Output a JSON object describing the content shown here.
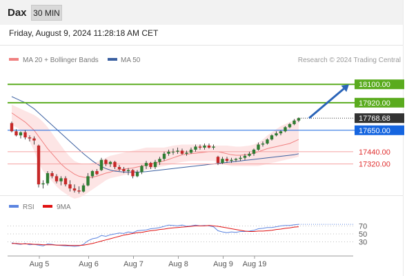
{
  "header": {
    "instrument": "Dax",
    "timeframe": "30 MIN"
  },
  "datetime": "Friday, August 9, 2024 11:28:18 AM CET",
  "legend": {
    "ma20_label": "MA 20 + Bollinger Bands",
    "ma50_label": "MA 50",
    "copyright": "Research © 2024 Trading Central"
  },
  "colors": {
    "up_candle": "#2e7d32",
    "down_candle": "#c62828",
    "wick": "#444444",
    "ma20": "#f08080",
    "bands_fill": "#fde0e0",
    "ma50": "#3a5fa0",
    "resistance": "#5aab1e",
    "current": "#333333",
    "pivot": "#1565e0",
    "support": "#f4a0a0",
    "arrow": "#2a64b8",
    "rsi": "#5b84e0",
    "rsi_ma": "#e01010"
  },
  "chart_data": [
    {
      "type": "candlestick",
      "instrument": "Dax",
      "interval": "30 MIN",
      "ylim": [
        17020,
        18250
      ],
      "x_ticks": [
        {
          "label": "Aug 5",
          "index": 4
        },
        {
          "label": "Aug 6",
          "index": 15
        },
        {
          "label": "Aug 7",
          "index": 25
        },
        {
          "label": "Aug 8",
          "index": 35
        },
        {
          "label": "Aug 9",
          "index": 45
        },
        {
          "label": "Aug 19",
          "index": 52
        }
      ],
      "candles": [
        [
          17720,
          17735,
          17630,
          17640
        ],
        [
          17640,
          17660,
          17590,
          17600
        ],
        [
          17600,
          17640,
          17570,
          17630
        ],
        [
          17630,
          17650,
          17560,
          17580
        ],
        [
          17580,
          17600,
          17540,
          17570
        ],
        [
          17570,
          17590,
          17510,
          17550
        ],
        [
          17500,
          17510,
          17090,
          17120
        ],
        [
          17120,
          17160,
          17080,
          17130
        ],
        [
          17130,
          17250,
          17110,
          17230
        ],
        [
          17230,
          17250,
          17180,
          17200
        ],
        [
          17200,
          17220,
          17130,
          17150
        ],
        [
          17150,
          17200,
          17110,
          17180
        ],
        [
          17180,
          17200,
          17100,
          17120
        ],
        [
          17120,
          17160,
          17050,
          17080
        ],
        [
          17080,
          17120,
          17040,
          17060
        ],
        [
          17060,
          17100,
          17030,
          17050
        ],
        [
          17050,
          17130,
          17040,
          17110
        ],
        [
          17110,
          17230,
          17100,
          17200
        ],
        [
          17200,
          17260,
          17180,
          17250
        ],
        [
          17250,
          17270,
          17210,
          17220
        ],
        [
          17260,
          17380,
          17250,
          17360
        ],
        [
          17360,
          17370,
          17300,
          17320
        ],
        [
          17320,
          17350,
          17290,
          17340
        ],
        [
          17340,
          17350,
          17270,
          17290
        ],
        [
          17290,
          17310,
          17250,
          17270
        ],
        [
          17270,
          17290,
          17230,
          17250
        ],
        [
          17250,
          17280,
          17210,
          17260
        ],
        [
          17260,
          17270,
          17180,
          17200
        ],
        [
          17200,
          17260,
          17190,
          17240
        ],
        [
          17240,
          17310,
          17220,
          17300
        ],
        [
          17300,
          17350,
          17270,
          17330
        ],
        [
          17330,
          17340,
          17270,
          17290
        ],
        [
          17290,
          17360,
          17270,
          17340
        ],
        [
          17340,
          17390,
          17310,
          17370
        ],
        [
          17370,
          17440,
          17350,
          17420
        ],
        [
          17420,
          17460,
          17400,
          17440
        ],
        [
          17440,
          17470,
          17410,
          17440
        ],
        [
          17440,
          17480,
          17420,
          17450
        ],
        [
          17450,
          17470,
          17410,
          17420
        ],
        [
          17420,
          17450,
          17400,
          17430
        ],
        [
          17430,
          17480,
          17420,
          17460
        ],
        [
          17460,
          17510,
          17440,
          17490
        ],
        [
          17490,
          17510,
          17460,
          17480
        ],
        [
          17480,
          17520,
          17460,
          17500
        ],
        [
          17500,
          17520,
          17470,
          17480
        ],
        [
          17480,
          17510,
          17460,
          17490
        ],
        [
          17390,
          17400,
          17310,
          17330
        ],
        [
          17330,
          17390,
          17320,
          17370
        ],
        [
          17370,
          17390,
          17330,
          17350
        ],
        [
          17350,
          17380,
          17330,
          17360
        ],
        [
          17360,
          17380,
          17340,
          17370
        ],
        [
          17370,
          17400,
          17350,
          17380
        ],
        [
          17380,
          17420,
          17360,
          17400
        ],
        [
          17400,
          17440,
          17390,
          17420
        ],
        [
          17420,
          17470,
          17400,
          17460
        ],
        [
          17460,
          17530,
          17450,
          17510
        ],
        [
          17510,
          17540,
          17490,
          17520
        ],
        [
          17520,
          17570,
          17510,
          17560
        ],
        [
          17560,
          17610,
          17550,
          17600
        ],
        [
          17600,
          17640,
          17590,
          17620
        ],
        [
          17620,
          17650,
          17600,
          17640
        ],
        [
          17640,
          17690,
          17630,
          17680
        ],
        [
          17680,
          17720,
          17670,
          17710
        ],
        [
          17710,
          17760,
          17700,
          17745
        ],
        [
          17745,
          17775,
          17730,
          17768.68
        ]
      ],
      "ma20": [
        17820,
        17790,
        17760,
        17730,
        17690,
        17650,
        17590,
        17530,
        17470,
        17420,
        17370,
        17320,
        17280,
        17250,
        17220,
        17200,
        17190,
        17185,
        17190,
        17200,
        17215,
        17230,
        17240,
        17255,
        17265,
        17270,
        17275,
        17280,
        17290,
        17300,
        17310,
        17320,
        17330,
        17340,
        17350,
        17365,
        17380,
        17395,
        17410,
        17415,
        17420,
        17425,
        17430,
        17435,
        17440,
        17440,
        17440,
        17430,
        17420,
        17410,
        17405,
        17405,
        17410,
        17415,
        17425,
        17440,
        17455,
        17470,
        17480,
        17490,
        17500,
        17510,
        17520,
        17540,
        17560
      ],
      "bands_upper": [
        17900,
        17880,
        17860,
        17840,
        17820,
        17800,
        17770,
        17730,
        17680,
        17620,
        17560,
        17500,
        17440,
        17390,
        17350,
        17330,
        17320,
        17320,
        17330,
        17340,
        17360,
        17380,
        17400,
        17410,
        17420,
        17430,
        17440,
        17450,
        17460,
        17470,
        17480,
        17480,
        17480,
        17480,
        17480,
        17490,
        17500,
        17505,
        17510,
        17510,
        17510,
        17510,
        17510,
        17510,
        17505,
        17500,
        17500,
        17500,
        17500,
        17495,
        17490,
        17490,
        17495,
        17500,
        17510,
        17530,
        17560,
        17600,
        17630,
        17660,
        17690,
        17710,
        17730,
        17750,
        17780
      ],
      "bands_lower": [
        17700,
        17680,
        17650,
        17600,
        17540,
        17450,
        17330,
        17250,
        17200,
        17150,
        17100,
        17060,
        17030,
        17000,
        16980,
        16990,
        17010,
        17040,
        17070,
        17100,
        17130,
        17160,
        17180,
        17190,
        17200,
        17210,
        17220,
        17230,
        17240,
        17250,
        17260,
        17270,
        17280,
        17290,
        17300,
        17310,
        17320,
        17330,
        17340,
        17345,
        17350,
        17350,
        17350,
        17350,
        17350,
        17350,
        17340,
        17320,
        17310,
        17300,
        17300,
        17300,
        17300,
        17300,
        17300,
        17300,
        17310,
        17320,
        17330,
        17340,
        17350,
        17360,
        17370,
        17380,
        17390
      ],
      "ma50": [
        17980,
        17960,
        17940,
        17920,
        17890,
        17860,
        17820,
        17780,
        17740,
        17700,
        17660,
        17620,
        17580,
        17540,
        17500,
        17460,
        17420,
        17385,
        17350,
        17320,
        17295,
        17275,
        17260,
        17250,
        17245,
        17240,
        17240,
        17240,
        17240,
        17242,
        17245,
        17250,
        17255,
        17260,
        17265,
        17270,
        17275,
        17280,
        17285,
        17290,
        17295,
        17300,
        17305,
        17310,
        17315,
        17320,
        17325,
        17330,
        17335,
        17340,
        17345,
        17350,
        17355,
        17360,
        17365,
        17370,
        17375,
        17380,
        17385,
        17390,
        17395,
        17400,
        17405,
        17410,
        17420
      ],
      "levels": [
        {
          "label": "18100.00",
          "value": 18100,
          "kind": "resistance"
        },
        {
          "label": "17920.00",
          "value": 17920,
          "kind": "resistance"
        },
        {
          "label": "17768.68",
          "value": 17768.68,
          "kind": "current"
        },
        {
          "label": "17650.00",
          "value": 17650,
          "kind": "pivot"
        },
        {
          "label": "17440.00",
          "value": 17440,
          "kind": "support"
        },
        {
          "label": "17320.00",
          "value": 17320,
          "kind": "support"
        }
      ],
      "arrow": {
        "from_index": 66,
        "from_value": 17768.68,
        "to_value": 18100
      }
    },
    {
      "type": "line",
      "legend": [
        "RSI",
        "9MA"
      ],
      "ylim": [
        0,
        100
      ],
      "y_ticks": [
        70,
        50,
        30
      ],
      "x_ticks": [
        "Aug 5",
        "Aug 6",
        "Aug 7",
        "Aug 8",
        "Aug 9",
        "Aug 19"
      ],
      "series": [
        {
          "name": "RSI",
          "values": [
            28,
            25,
            24,
            26,
            23,
            24,
            22,
            20,
            25,
            24,
            22,
            21,
            20,
            20,
            19,
            20,
            24,
            33,
            38,
            40,
            46,
            44,
            48,
            50,
            52,
            51,
            55,
            53,
            58,
            59,
            60,
            63,
            64,
            66,
            69,
            72,
            71,
            70,
            72,
            69,
            70,
            72,
            70,
            71,
            70,
            68,
            58,
            55,
            53,
            55,
            54,
            56,
            56,
            57,
            59,
            63,
            64,
            66,
            66,
            68,
            70,
            71,
            71,
            73,
            74
          ]
        },
        {
          "name": "9MA",
          "values": [
            26,
            26,
            25,
            25,
            25,
            24,
            24,
            23,
            23,
            23,
            22,
            22,
            22,
            21,
            21,
            21,
            22,
            24,
            26,
            29,
            32,
            35,
            38,
            41,
            44,
            47,
            49,
            51,
            53,
            54,
            56,
            58,
            59,
            61,
            62,
            64,
            65,
            66,
            67,
            68,
            69,
            70,
            70,
            70,
            71,
            70,
            69,
            67,
            65,
            63,
            61,
            59,
            57,
            56,
            56,
            57,
            57,
            58,
            59,
            61,
            62,
            64,
            65,
            67,
            68
          ]
        }
      ]
    }
  ]
}
